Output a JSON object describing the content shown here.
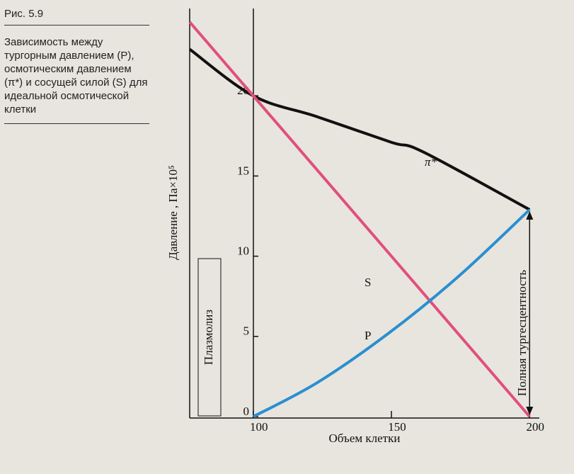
{
  "figure_label": "Рис. 5.9",
  "caption": "Зависимость между тургорным давлением (P), осмотическим давлением (π*) и сосущей силой (S) для идеальной осмотической клетки",
  "chart_data": {
    "type": "line",
    "x_label": "Объем клетки",
    "y_label": "Давление , Па×10⁵",
    "annotations": [
      "Плазмолиз",
      "Полная тургесцентность"
    ],
    "xlim": [
      77,
      203
    ],
    "ylim": [
      0,
      25
    ],
    "xticks": [
      100,
      150,
      200
    ],
    "yticks": [
      0,
      5,
      10,
      15,
      20
    ],
    "series": [
      {
        "name": "π*",
        "color": "#111111",
        "x": [
          77,
          100,
          123,
          150,
          161.5,
          200
        ],
        "values": [
          22.9,
          20,
          18.7,
          17.1,
          16.5,
          12.9
        ]
      },
      {
        "name": "S",
        "color": "#e0507a",
        "x": [
          77,
          100,
          200
        ],
        "values": [
          24.6,
          20,
          0
        ]
      },
      {
        "name": "P",
        "color": "#2a8fd0",
        "x": [
          100,
          123,
          149,
          174,
          200
        ],
        "values": [
          0,
          2.1,
          5.2,
          8.7,
          12.9
        ]
      }
    ]
  }
}
